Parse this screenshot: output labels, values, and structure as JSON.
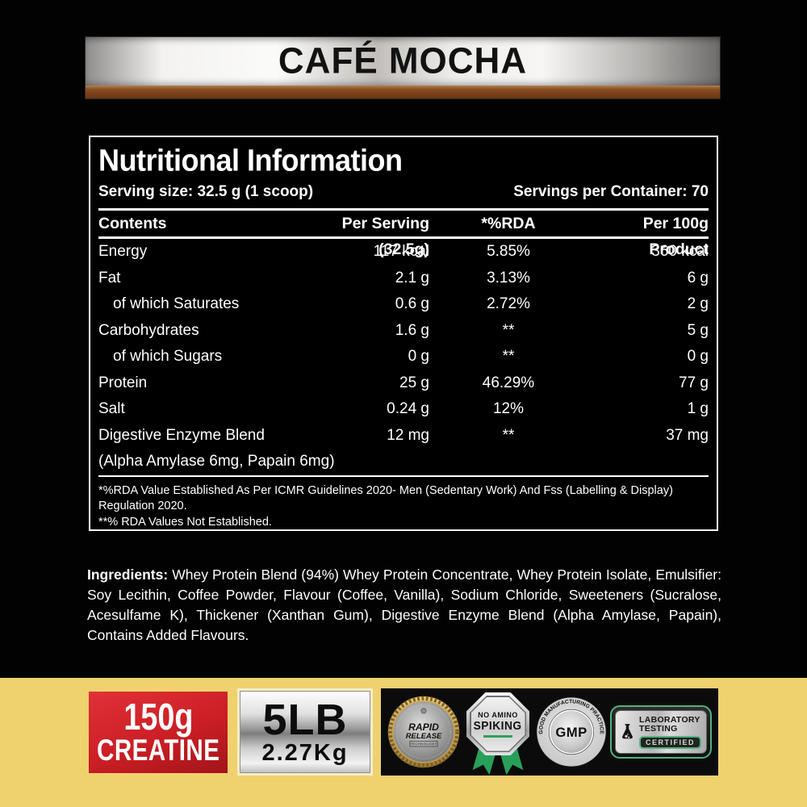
{
  "banner": {
    "flavor_title": "CAFÉ MOCHA"
  },
  "nutrition": {
    "title": "Nutritional Information",
    "serving_size": "Serving size: 32.5 g (1 scoop)",
    "servings_per_container": "Servings per Container: 70",
    "columns": [
      "Contents",
      "Per Serving (32.5g)",
      "*%RDA",
      "Per 100g Product"
    ],
    "rows": [
      {
        "name": "Energy",
        "per_serving": "117 kcal",
        "rda": "5.85%",
        "per_100g": "360 kcal",
        "indent": false,
        "full": false
      },
      {
        "name": "Fat",
        "per_serving": "2.1 g",
        "rda": "3.13%",
        "per_100g": "6 g",
        "indent": false,
        "full": false
      },
      {
        "name": "of which Saturates",
        "per_serving": "0.6 g",
        "rda": "2.72%",
        "per_100g": "2 g",
        "indent": true,
        "full": false
      },
      {
        "name": "Carbohydrates",
        "per_serving": "1.6 g",
        "rda": "**",
        "per_100g": "5 g",
        "indent": false,
        "full": false
      },
      {
        "name": "of which Sugars",
        "per_serving": "0 g",
        "rda": "**",
        "per_100g": "0 g",
        "indent": true,
        "full": false
      },
      {
        "name": "Protein",
        "per_serving": "25 g",
        "rda": "46.29%",
        "per_100g": "77 g",
        "indent": false,
        "full": false
      },
      {
        "name": "Salt",
        "per_serving": "0.24 g",
        "rda": "12%",
        "per_100g": "1 g",
        "indent": false,
        "full": false
      },
      {
        "name": "Digestive Enzyme Blend",
        "per_serving": "12 mg",
        "rda": "**",
        "per_100g": "37 mg",
        "indent": false,
        "full": false
      },
      {
        "name": "(Alpha Amylase 6mg, Papain 6mg)",
        "per_serving": "",
        "rda": "",
        "per_100g": "",
        "indent": false,
        "full": true
      }
    ],
    "footnotes": [
      "*%RDA Value Established As Per ICMR Guidelines 2020- Men (Sedentary Work) And Fss (Labelling & Display) Regulation 2020.",
      "**% RDA Values Not Established."
    ]
  },
  "ingredients": {
    "label": "Ingredients:",
    "text": "Whey Protein Blend (94%) Whey Protein Concentrate, Whey Protein Isolate, Emulsifier: Soy Lecithin, Coffee Powder, Flavour (Coffee, Vanilla), Sodium Chloride, Sweeteners (Sucralose, Acesulfame K), Thickener (Xanthan Gum), Digestive Enzyme Blend (Alpha Amylase, Papain), Contains Added Flavours."
  },
  "badges": {
    "creatine": {
      "amount": "150g",
      "label": "CREATINE"
    },
    "size": {
      "lb": "5LB",
      "kg": "2.27Kg"
    },
    "rapid_release": {
      "word1": "RAPID",
      "word2": "RELEASE",
      "word3": "TECHNOLOGY"
    },
    "no_amino": {
      "line1": "NO AMINO",
      "line2": "SPIKING"
    },
    "gmp": {
      "arc_top": "GOOD MANUFACTURING PRACTICE",
      "arc_bottom": "• CERTIFIED •",
      "center": "GMP"
    },
    "lab": {
      "line1": "LABORATORY",
      "line2": "TESTING",
      "badge": "CERTIFIED"
    }
  },
  "colors": {
    "background": "#020202",
    "strip_yellow": "#efd26e",
    "creatine_red": "#cb1e25",
    "banner_brown": "#7a4018",
    "ribbon_green": "#28a05a",
    "lab_green": "#4fb381",
    "text_white": "#ffffff"
  }
}
